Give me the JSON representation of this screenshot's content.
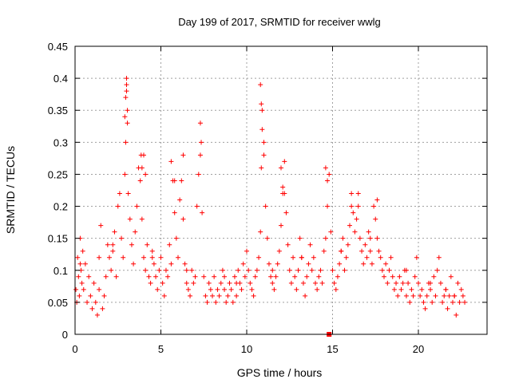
{
  "chart_data": {
    "type": "scatter",
    "title": "Day 199 of 2017, SRMTID for receiver wwlg",
    "xlabel": "GPS time / hours",
    "ylabel": "SRMTID / TECUs",
    "xlim": [
      0,
      24
    ],
    "ylim": [
      0,
      0.45
    ],
    "x_ticks": [
      0,
      5,
      10,
      15,
      20
    ],
    "x_tick_labels": [
      "0",
      "5",
      "10",
      "15",
      "20"
    ],
    "y_ticks": [
      0,
      0.05,
      0.1,
      0.15,
      0.2,
      0.25,
      0.3,
      0.35,
      0.4,
      0.45
    ],
    "y_tick_labels": [
      "0",
      "0.05",
      "0.1",
      "0.15",
      "0.2",
      "0.25",
      "0.3",
      "0.35",
      "0.4",
      "0.45"
    ],
    "grid": true,
    "marker": "+",
    "series_color": "#ff0000",
    "markers_on_x_axis": [
      14.8
    ],
    "series": [
      {
        "name": "SRMTID",
        "x": [
          0.05,
          0.1,
          0.15,
          0.2,
          0.25,
          0.3,
          0.35,
          0.4,
          0.45,
          0.5,
          0.6,
          0.7,
          0.8,
          0.9,
          1.0,
          1.1,
          1.2,
          1.3,
          1.4,
          1.5,
          1.6,
          1.7,
          1.8,
          1.9,
          2.0,
          2.1,
          2.2,
          2.3,
          2.4,
          2.5,
          2.6,
          2.7,
          2.8,
          2.9,
          2.95,
          3.0,
          3.0,
          3.05,
          3.1,
          3.2,
          3.3,
          3.4,
          3.5,
          3.6,
          3.7,
          3.8,
          3.85,
          3.9,
          4.0,
          4.1,
          4.2,
          4.3,
          4.4,
          4.5,
          4.6,
          4.7,
          4.8,
          4.9,
          5.0,
          5.1,
          5.2,
          5.3,
          5.4,
          5.5,
          5.6,
          5.7,
          5.8,
          5.9,
          6.0,
          6.1,
          6.2,
          6.3,
          6.4,
          6.5,
          6.6,
          6.7,
          6.8,
          6.9,
          7.0,
          7.1,
          7.2,
          7.3,
          7.4,
          7.5,
          7.6,
          7.7,
          7.8,
          7.9,
          8.0,
          8.1,
          8.2,
          8.3,
          8.4,
          8.5,
          8.6,
          8.7,
          8.8,
          8.9,
          9.0,
          9.1,
          9.2,
          9.3,
          9.4,
          9.5,
          9.6,
          9.7,
          9.8,
          9.9,
          10.0,
          10.1,
          10.2,
          10.3,
          10.4,
          10.5,
          10.6,
          10.7,
          10.8,
          10.85,
          10.9,
          11.0,
          11.1,
          11.2,
          11.3,
          11.4,
          11.5,
          11.6,
          11.7,
          11.8,
          11.9,
          12.0,
          12.1,
          12.2,
          12.3,
          12.4,
          12.5,
          12.6,
          12.7,
          12.8,
          12.9,
          13.0,
          13.1,
          13.2,
          13.3,
          13.4,
          13.5,
          13.6,
          13.7,
          13.8,
          13.9,
          14.0,
          14.1,
          14.2,
          14.3,
          14.4,
          14.5,
          14.6,
          14.7,
          14.8,
          14.9,
          15.0,
          15.1,
          15.2,
          15.3,
          15.4,
          15.5,
          15.6,
          15.7,
          15.8,
          15.9,
          16.0,
          16.1,
          16.2,
          16.3,
          16.4,
          16.5,
          16.6,
          16.7,
          16.8,
          16.9,
          17.0,
          17.1,
          17.2,
          17.3,
          17.4,
          17.5,
          17.6,
          17.7,
          17.8,
          17.9,
          18.0,
          18.1,
          18.2,
          18.3,
          18.4,
          18.5,
          18.6,
          18.7,
          18.8,
          18.9,
          19.0,
          19.1,
          19.2,
          19.3,
          19.4,
          19.5,
          19.6,
          19.7,
          19.8,
          19.9,
          20.0,
          20.1,
          20.2,
          20.3,
          20.4,
          20.5,
          20.6,
          20.7,
          20.8,
          20.9,
          21.0,
          21.1,
          21.2,
          21.3,
          21.4,
          21.5,
          21.6,
          21.7,
          21.8,
          21.9,
          22.0,
          22.1,
          22.2,
          22.3,
          22.4,
          22.5,
          22.6,
          22.7,
          2.9,
          2.95,
          3.0,
          3.05,
          3.9,
          4.0,
          4.1,
          5.6,
          5.8,
          6.3,
          7.3,
          7.35,
          10.8,
          10.85,
          10.9,
          11.0,
          12.0,
          12.1,
          12.2,
          14.6,
          14.7,
          16.1,
          16.5,
          17.6,
          0.3,
          1.4,
          2.2,
          4.5,
          6.5,
          8.7,
          9.4,
          11.5,
          13.2,
          15.5,
          17.2,
          19.3,
          20.7,
          21.6,
          22.1
        ],
        "y": [
          0.07,
          0.05,
          0.12,
          0.09,
          0.06,
          0.15,
          0.1,
          0.08,
          0.13,
          0.07,
          0.11,
          0.05,
          0.09,
          0.06,
          0.04,
          0.08,
          0.05,
          0.03,
          0.07,
          0.17,
          0.04,
          0.06,
          0.09,
          0.14,
          0.12,
          0.1,
          0.13,
          0.16,
          0.09,
          0.2,
          0.22,
          0.15,
          0.12,
          0.25,
          0.3,
          0.38,
          0.4,
          0.33,
          0.22,
          0.18,
          0.14,
          0.11,
          0.16,
          0.2,
          0.26,
          0.24,
          0.28,
          0.18,
          0.12,
          0.1,
          0.14,
          0.09,
          0.08,
          0.13,
          0.11,
          0.09,
          0.07,
          0.1,
          0.12,
          0.08,
          0.06,
          0.1,
          0.09,
          0.14,
          0.11,
          0.24,
          0.19,
          0.15,
          0.12,
          0.21,
          0.24,
          0.18,
          0.11,
          0.08,
          0.07,
          0.06,
          0.1,
          0.08,
          0.09,
          0.2,
          0.25,
          0.28,
          0.19,
          0.09,
          0.06,
          0.05,
          0.08,
          0.07,
          0.06,
          0.09,
          0.05,
          0.07,
          0.06,
          0.08,
          0.1,
          0.07,
          0.05,
          0.06,
          0.08,
          0.07,
          0.05,
          0.09,
          0.06,
          0.1,
          0.08,
          0.07,
          0.11,
          0.09,
          0.13,
          0.1,
          0.08,
          0.07,
          0.06,
          0.09,
          0.1,
          0.12,
          0.16,
          0.26,
          0.35,
          0.3,
          0.2,
          0.15,
          0.11,
          0.09,
          0.08,
          0.07,
          0.09,
          0.11,
          0.13,
          0.17,
          0.22,
          0.27,
          0.19,
          0.14,
          0.1,
          0.08,
          0.12,
          0.09,
          0.07,
          0.1,
          0.15,
          0.12,
          0.08,
          0.06,
          0.09,
          0.11,
          0.14,
          0.1,
          0.12,
          0.08,
          0.07,
          0.09,
          0.1,
          0.08,
          0.13,
          0.15,
          0.2,
          0.25,
          0.16,
          0.1,
          0.08,
          0.07,
          0.09,
          0.11,
          0.13,
          0.15,
          0.1,
          0.12,
          0.14,
          0.17,
          0.22,
          0.19,
          0.16,
          0.18,
          0.2,
          0.15,
          0.13,
          0.11,
          0.14,
          0.12,
          0.16,
          0.13,
          0.11,
          0.2,
          0.18,
          0.15,
          0.13,
          0.12,
          0.1,
          0.09,
          0.11,
          0.08,
          0.1,
          0.12,
          0.09,
          0.07,
          0.08,
          0.06,
          0.09,
          0.07,
          0.08,
          0.1,
          0.06,
          0.08,
          0.05,
          0.07,
          0.06,
          0.09,
          0.12,
          0.08,
          0.06,
          0.07,
          0.05,
          0.04,
          0.06,
          0.08,
          0.07,
          0.05,
          0.09,
          0.06,
          0.1,
          0.12,
          0.08,
          0.05,
          0.06,
          0.07,
          0.04,
          0.06,
          0.09,
          0.05,
          0.06,
          0.03,
          0.08,
          0.05,
          0.07,
          0.06,
          0.05,
          0.34,
          0.37,
          0.39,
          0.35,
          0.26,
          0.28,
          0.25,
          0.27,
          0.24,
          0.28,
          0.33,
          0.3,
          0.39,
          0.36,
          0.32,
          0.28,
          0.26,
          0.23,
          0.22,
          0.26,
          0.24,
          0.2,
          0.22,
          0.21,
          0.11,
          0.12,
          0.14,
          0.12,
          0.1,
          0.09,
          0.08,
          0.1,
          0.12,
          0.13,
          0.15,
          0.1,
          0.08,
          0.07,
          0.06
        ]
      }
    ]
  }
}
